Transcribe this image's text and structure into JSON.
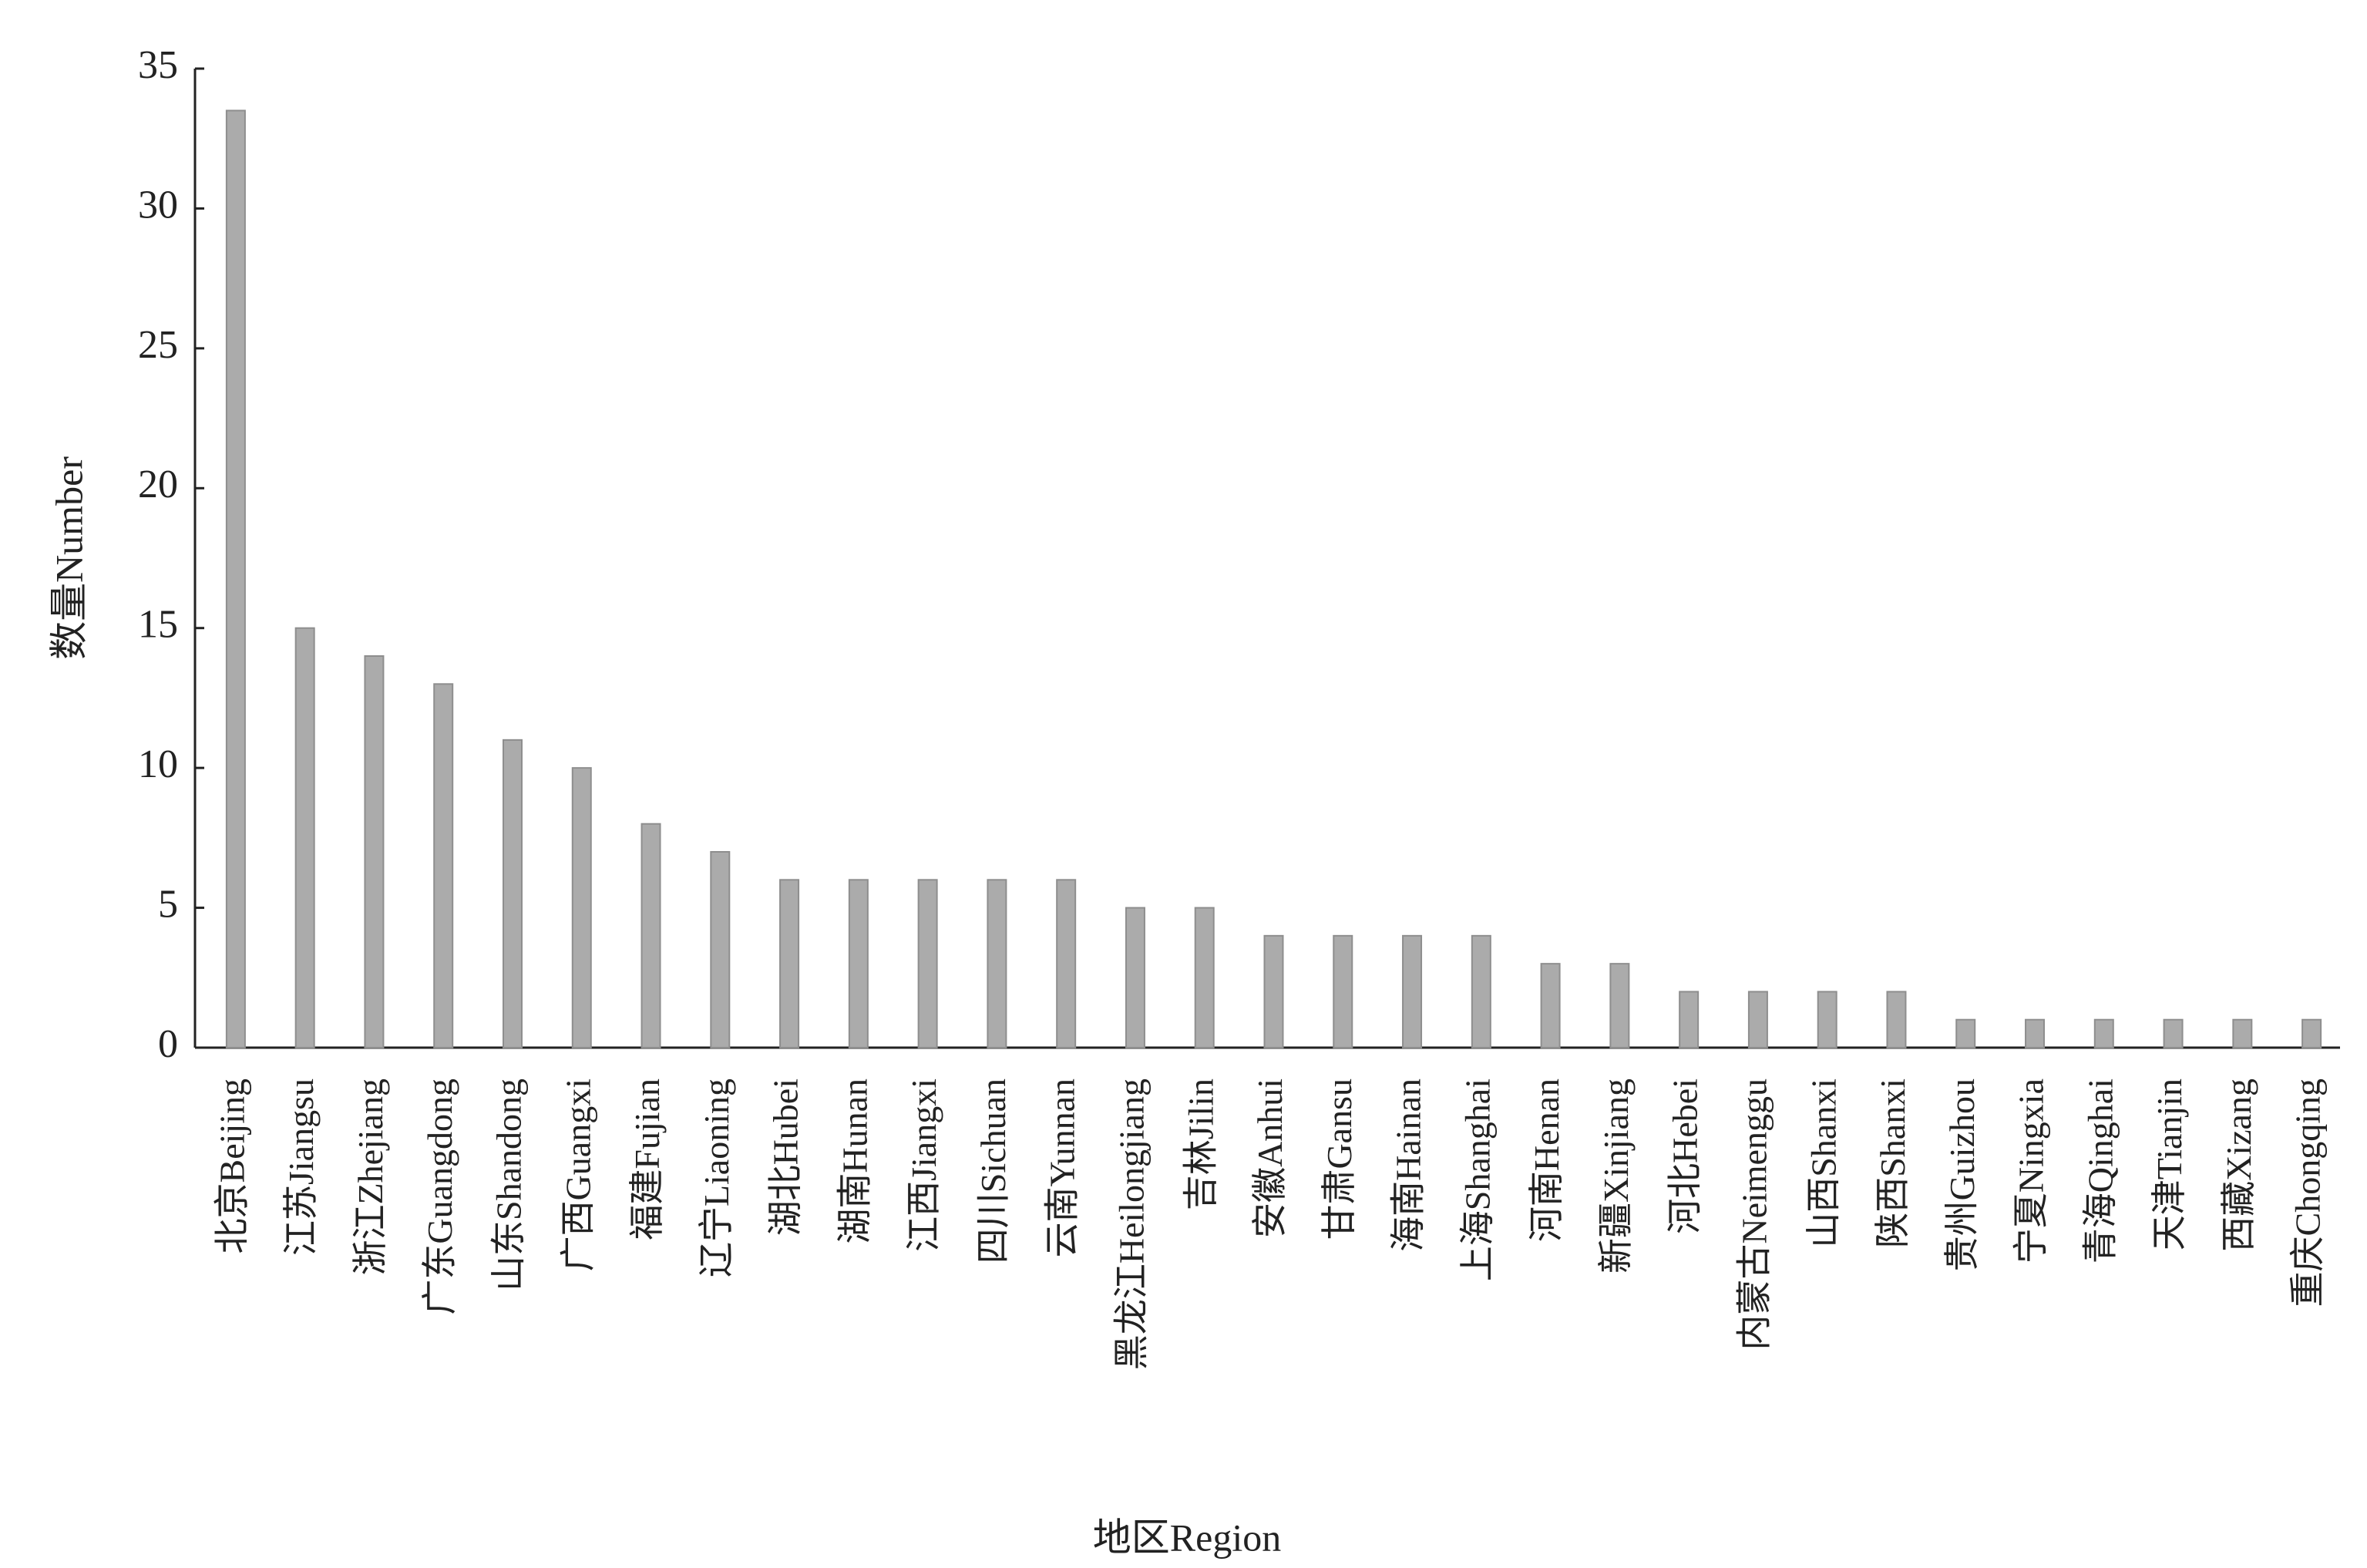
{
  "chart_data": {
    "type": "bar",
    "x_label": "地区Region",
    "y_label": "数量Number",
    "categories": [
      "北京Beijing",
      "江苏Jiangsu",
      "浙江Zhejiang",
      "广东Guangdong",
      "山东Shandong",
      "广西Guangxi",
      "福建Fujian",
      "辽宁Liaoning",
      "湖北Hubei",
      "湖南Hunan",
      "江西Jiangxi",
      "四川Sichuan",
      "云南Yunnan",
      "黑龙江Heilongjiang",
      "吉林Jilin",
      "安徽Anhui",
      "甘肃Gansu",
      "海南Hainan",
      "上海Shanghai",
      "河南Henan",
      "新疆Xinjiang",
      "河北Hebei",
      "内蒙古Neimenggu",
      "山西Shanxi",
      "陕西Shanxi",
      "贵州Guizhou",
      "宁夏Ningxia",
      "青海Qinghai",
      "天津Tianjin",
      "西藏Xizang",
      "重庆Chongqing"
    ],
    "values": [
      33.5,
      15,
      14,
      13,
      11,
      10,
      8,
      7,
      6,
      6,
      6,
      6,
      6,
      5,
      5,
      4,
      4,
      4,
      4,
      3,
      3,
      2,
      2,
      2,
      2,
      1,
      1,
      1,
      1,
      1,
      1
    ],
    "color": "#ababab",
    "ylim": [
      0,
      35
    ],
    "yticks": [
      0,
      5,
      10,
      15,
      20,
      25,
      30,
      35
    ],
    "grid": false
  }
}
